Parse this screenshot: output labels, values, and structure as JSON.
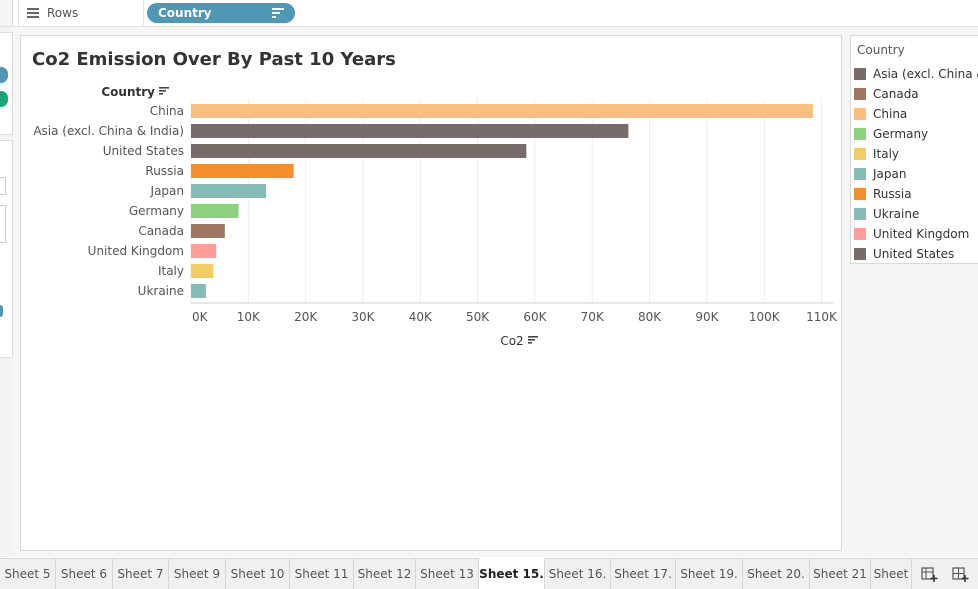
{
  "shelf": {
    "rows_label": "Rows",
    "pill_label": "Country"
  },
  "chart": {
    "title": "Co2 Emission Over By Past 10 Years",
    "row_header": "Country",
    "x_axis_label": "Co2"
  },
  "chart_data": {
    "type": "bar",
    "orientation": "horizontal",
    "title": "Co2 Emission Over By Past 10 Years",
    "xlabel": "Co2",
    "ylabel": "Country",
    "categories": [
      "China",
      "Asia (excl. China & India)",
      "United States",
      "Russia",
      "Japan",
      "Germany",
      "Canada",
      "United Kingdom",
      "Italy",
      "Ukraine"
    ],
    "values": [
      108500,
      76300,
      58500,
      17900,
      13100,
      8300,
      5900,
      4400,
      3900,
      2600
    ],
    "colors": [
      "#fabe7e",
      "#786c6a",
      "#786c6a",
      "#f28e2b",
      "#86bcb6",
      "#8cd17d",
      "#9d7660",
      "#ff9d9a",
      "#f1ce63",
      "#86bcb6"
    ],
    "xlim": [
      0,
      112000
    ],
    "ticks": [
      0,
      10000,
      20000,
      30000,
      40000,
      50000,
      60000,
      70000,
      80000,
      90000,
      100000,
      110000
    ],
    "tick_labels": [
      "0K",
      "10K",
      "20K",
      "30K",
      "40K",
      "50K",
      "60K",
      "70K",
      "80K",
      "90K",
      "100K",
      "110K"
    ],
    "grid": true,
    "legend_position": "right"
  },
  "legend": {
    "title": "Country",
    "items": [
      {
        "label": "Asia (excl. China &",
        "color": "#786c6a"
      },
      {
        "label": "Canada",
        "color": "#9d7660"
      },
      {
        "label": "China",
        "color": "#fabe7e"
      },
      {
        "label": "Germany",
        "color": "#8cd17d"
      },
      {
        "label": "Italy",
        "color": "#f1ce63"
      },
      {
        "label": "Japan",
        "color": "#86bcb6"
      },
      {
        "label": "Russia",
        "color": "#f28e2b"
      },
      {
        "label": "Ukraine",
        "color": "#86bcb6"
      },
      {
        "label": "United Kingdom",
        "color": "#ff9d9a"
      },
      {
        "label": "United States",
        "color": "#786c6a"
      }
    ]
  },
  "tabs": {
    "items": [
      "Sheet 5",
      "Sheet 6",
      "Sheet 7",
      "Sheet 9",
      "Sheet 10",
      "Sheet 11",
      "Sheet 12",
      "Sheet 13",
      "Sheet 15.",
      "Sheet 16.",
      "Sheet 17.",
      "Sheet 19.",
      "Sheet 20.",
      "Sheet 21",
      "Sheet"
    ],
    "active": "Sheet 15.",
    "new_sheet_icon": "new-worksheet-icon",
    "new_dashboard_icon": "new-dashboard-icon"
  }
}
